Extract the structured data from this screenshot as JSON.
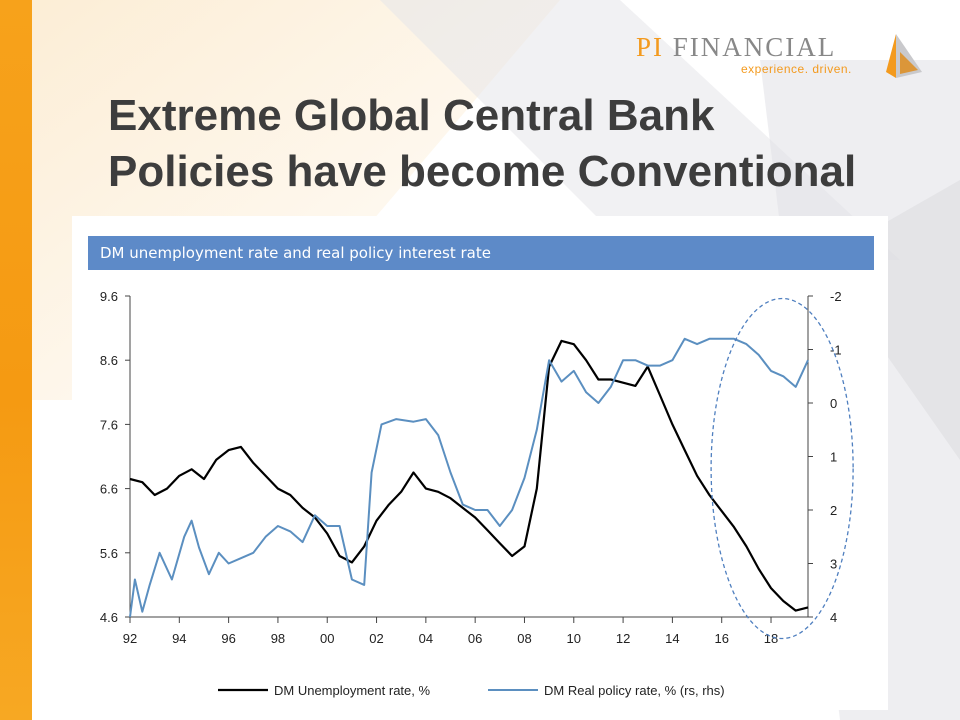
{
  "branding": {
    "logo_primary": "PI",
    "logo_secondary": "FINANCIAL",
    "tagline": "experience. driven.",
    "accent_color": "#f39a1e"
  },
  "slide": {
    "title_line1": "Extreme Global Central Bank",
    "title_line2": "Policies have become Conventional"
  },
  "chart_data": {
    "type": "line",
    "title": "DM unemployment rate and real policy interest rate",
    "x_tick_labels": [
      "92",
      "94",
      "96",
      "98",
      "00",
      "02",
      "04",
      "06",
      "08",
      "10",
      "12",
      "14",
      "16",
      "18"
    ],
    "x_tick_years": [
      1992,
      1994,
      1996,
      1998,
      2000,
      2002,
      2004,
      2006,
      2008,
      2010,
      2012,
      2014,
      2016,
      2018
    ],
    "x_range": [
      1992,
      2019.5
    ],
    "left_axis": {
      "ticks": [
        "9.6",
        "8.6",
        "7.6",
        "6.6",
        "5.6",
        "4.6"
      ],
      "range": [
        4.6,
        9.6
      ]
    },
    "right_axis": {
      "ticks": [
        "-2",
        "-1",
        "0",
        "1",
        "2",
        "3",
        "4"
      ],
      "range": [
        -2,
        4
      ],
      "inverted": true
    },
    "grid": false,
    "legend_position": "bottom",
    "highlight": "dashed ellipse around 2016-2019",
    "series": [
      {
        "name": "DM Unemployment rate, %",
        "axis": "left",
        "color": "#000000",
        "x": [
          1992,
          1992.5,
          1993,
          1993.5,
          1994,
          1994.5,
          1995,
          1995.5,
          1996,
          1996.5,
          1997,
          1997.5,
          1998,
          1998.5,
          1999,
          1999.5,
          2000,
          2000.5,
          2001,
          2001.5,
          2002,
          2002.5,
          2003,
          2003.5,
          2004,
          2004.5,
          2005,
          2005.5,
          2006,
          2006.5,
          2007,
          2007.5,
          2008,
          2008.5,
          2009,
          2009.5,
          2010,
          2010.5,
          2011,
          2011.5,
          2012,
          2012.5,
          2013,
          2013.5,
          2014,
          2014.5,
          2015,
          2015.5,
          2016,
          2016.5,
          2017,
          2017.5,
          2018,
          2018.5,
          2019,
          2019.5
        ],
        "y": [
          6.75,
          6.7,
          6.5,
          6.6,
          6.8,
          6.9,
          6.75,
          7.05,
          7.2,
          7.25,
          7.0,
          6.8,
          6.6,
          6.5,
          6.3,
          6.15,
          5.9,
          5.55,
          5.45,
          5.7,
          6.1,
          6.35,
          6.55,
          6.85,
          6.6,
          6.55,
          6.45,
          6.3,
          6.15,
          5.95,
          5.75,
          5.55,
          5.7,
          6.6,
          8.5,
          8.9,
          8.85,
          8.6,
          8.3,
          8.3,
          8.25,
          8.2,
          8.5,
          8.05,
          7.6,
          7.2,
          6.8,
          6.5,
          6.25,
          6.0,
          5.7,
          5.35,
          5.05,
          4.85,
          4.7,
          4.75
        ]
      },
      {
        "name": "DM Real policy rate, % (rs, rhs)",
        "axis": "right",
        "color": "#5b8fc0",
        "x": [
          1992,
          1992.2,
          1992.5,
          1992.8,
          1993.2,
          1993.7,
          1994.2,
          1994.5,
          1994.8,
          1995.2,
          1995.6,
          1996.0,
          1996.5,
          1997.0,
          1997.5,
          1998.0,
          1998.5,
          1999.0,
          1999.5,
          2000.0,
          2000.5,
          2001.0,
          2001.5,
          2001.8,
          2002.2,
          2002.8,
          2003.5,
          2004.0,
          2004.5,
          2005.0,
          2005.5,
          2006.0,
          2006.5,
          2007.0,
          2007.5,
          2008.0,
          2008.5,
          2009.0,
          2009.5,
          2010.0,
          2010.5,
          2011.0,
          2011.5,
          2012.0,
          2012.5,
          2013.0,
          2013.5,
          2014.0,
          2014.5,
          2015.0,
          2015.5,
          2016.0,
          2016.5,
          2017.0,
          2017.5,
          2018.0,
          2018.5,
          2019.0,
          2019.5
        ],
        "y": [
          4.0,
          3.3,
          3.9,
          3.4,
          2.8,
          3.3,
          2.5,
          2.2,
          2.7,
          3.2,
          2.8,
          3.0,
          2.9,
          2.8,
          2.5,
          2.3,
          2.4,
          2.6,
          2.1,
          2.3,
          2.3,
          3.3,
          3.4,
          1.3,
          0.4,
          0.3,
          0.35,
          0.3,
          0.6,
          1.3,
          1.9,
          2.0,
          2.0,
          2.3,
          2.0,
          1.4,
          0.5,
          -0.8,
          -0.4,
          -0.6,
          -0.2,
          0.0,
          -0.3,
          -0.8,
          -0.8,
          -0.7,
          -0.7,
          -0.8,
          -1.2,
          -1.1,
          -1.2,
          -1.2,
          -1.2,
          -1.1,
          -0.9,
          -0.6,
          -0.5,
          -0.3,
          -0.8
        ]
      }
    ]
  }
}
